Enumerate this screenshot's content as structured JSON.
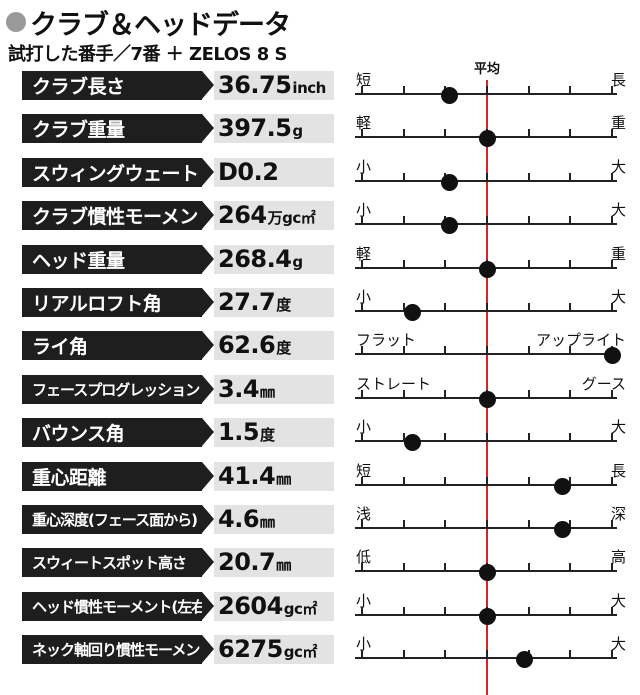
{
  "header": {
    "title": "クラブ＆ヘッドデータ",
    "subtitle": "試打した番手／7番 ＋ ZELOS 8 S",
    "average_label": "平均"
  },
  "colors": {
    "average_line": "#d3232b",
    "label_bg": "#1e1e1e",
    "value_bg": "#e3e3e3"
  },
  "rows": [
    {
      "label": "クラブ長さ",
      "value": "36.75",
      "unit": "inch",
      "left": "短",
      "right": "長",
      "position": 0.35
    },
    {
      "label": "クラブ重量",
      "value": "397.5",
      "unit": "g",
      "left": "軽",
      "right": "重",
      "position": 0.5
    },
    {
      "label": "スウィングウェート",
      "value": "D0.2",
      "unit": "",
      "left": "小",
      "right": "大",
      "position": 0.35
    },
    {
      "label": "クラブ慣性モーメント",
      "value": "264",
      "unit": "万gc㎡",
      "left": "小",
      "right": "大",
      "position": 0.35
    },
    {
      "label": "ヘッド重量",
      "value": "268.4",
      "unit": "g",
      "left": "軽",
      "right": "重",
      "position": 0.5
    },
    {
      "label": "リアルロフト角",
      "value": "27.7",
      "unit": "度",
      "left": "小",
      "right": "大",
      "position": 0.2
    },
    {
      "label": "ライ角",
      "value": "62.6",
      "unit": "度",
      "left": "フラット",
      "right": "アップライト",
      "position": 1.0
    },
    {
      "label": "フェースプログレッション",
      "value": "3.4",
      "unit": "㎜",
      "left": "ストレート",
      "right": "グース",
      "position": 0.5
    },
    {
      "label": "バウンス角",
      "value": "1.5",
      "unit": "度",
      "left": "小",
      "right": "大",
      "position": 0.2
    },
    {
      "label": "重心距離",
      "value": "41.4",
      "unit": "㎜",
      "left": "短",
      "right": "長",
      "position": 0.8
    },
    {
      "label": "重心深度(フェース面から)",
      "value": "4.6",
      "unit": "㎜",
      "left": "浅",
      "right": "深",
      "position": 0.8
    },
    {
      "label": "スウィートスポット高さ",
      "value": "20.7",
      "unit": "㎜",
      "left": "低",
      "right": "高",
      "position": 0.5
    },
    {
      "label": "ヘッド慣性モーメント(左右方向)",
      "value": "2604",
      "unit": "gc㎡",
      "left": "小",
      "right": "大",
      "position": 0.5
    },
    {
      "label": "ネック軸回り慣性モーメント",
      "value": "6275",
      "unit": "gc㎡",
      "left": "小",
      "right": "大",
      "position": 0.65
    }
  ]
}
